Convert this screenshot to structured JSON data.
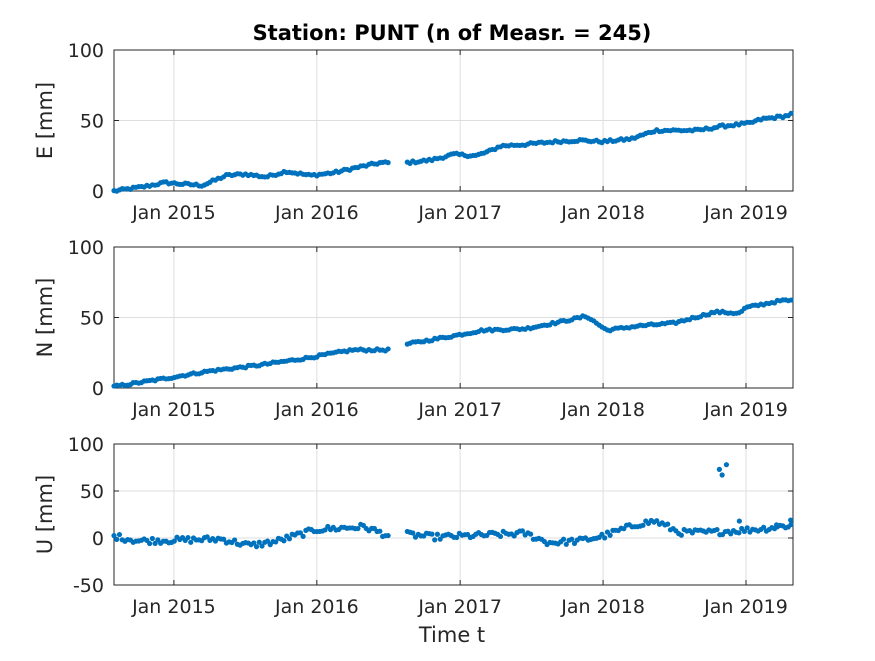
{
  "title": "Station: PUNT (n of Measr. = 245)",
  "xlabel": "Time t",
  "colors": {
    "marker": "#0072BD",
    "grid": "#dedede",
    "axis": "#262626",
    "text": "#262626"
  },
  "chart_data": [
    {
      "type": "scatter",
      "name_key": "E",
      "ylabel": "E [mm]",
      "xlim": [
        "2014-08-01",
        "2019-05-01"
      ],
      "ylim": [
        0,
        100
      ],
      "yticks": [
        0,
        50,
        100
      ],
      "xticks": [
        "Jan 2015",
        "Jan 2016",
        "Jan 2017",
        "Jan 2018",
        "Jan 2019"
      ],
      "grid": true,
      "gap": [
        "2016-07-07",
        "2016-08-14"
      ],
      "trend_points": [
        [
          "2014-08-01",
          0
        ],
        [
          "2014-10-15",
          3
        ],
        [
          "2014-12-10",
          6
        ],
        [
          "2015-01-20",
          5
        ],
        [
          "2015-03-15",
          4
        ],
        [
          "2015-05-15",
          11
        ],
        [
          "2015-07-01",
          12
        ],
        [
          "2015-08-25",
          10
        ],
        [
          "2015-10-15",
          14
        ],
        [
          "2015-12-15",
          11
        ],
        [
          "2016-02-15",
          13
        ],
        [
          "2016-04-01",
          16
        ],
        [
          "2016-06-10",
          20
        ],
        [
          "2016-08-15",
          20
        ],
        [
          "2016-10-20",
          22
        ],
        [
          "2016-12-15",
          26
        ],
        [
          "2017-02-10",
          25
        ],
        [
          "2017-03-15",
          28
        ],
        [
          "2017-04-15",
          32
        ],
        [
          "2017-06-15",
          33
        ],
        [
          "2017-09-01",
          35
        ],
        [
          "2017-11-01",
          36
        ],
        [
          "2018-01-01",
          35
        ],
        [
          "2018-03-15",
          37
        ],
        [
          "2018-04-15",
          40
        ],
        [
          "2018-05-15",
          43
        ],
        [
          "2018-09-01",
          43
        ],
        [
          "2018-11-01",
          46
        ],
        [
          "2019-01-10",
          48
        ],
        [
          "2019-02-10",
          51
        ],
        [
          "2019-04-10",
          53
        ],
        [
          "2019-05-01",
          55
        ]
      ],
      "noise": 0.9
    },
    {
      "type": "scatter",
      "name_key": "N",
      "ylabel": "N [mm]",
      "xlim": [
        "2014-08-01",
        "2019-05-01"
      ],
      "ylim": [
        0,
        100
      ],
      "yticks": [
        0,
        50,
        100
      ],
      "xticks": [
        "Jan 2015",
        "Jan 2016",
        "Jan 2017",
        "Jan 2018",
        "Jan 2019"
      ],
      "grid": true,
      "gap": [
        "2016-07-07",
        "2016-08-14"
      ],
      "trend_points": [
        [
          "2014-08-01",
          1
        ],
        [
          "2014-12-15",
          7
        ],
        [
          "2015-04-01",
          12
        ],
        [
          "2015-08-01",
          16
        ],
        [
          "2015-12-01",
          21
        ],
        [
          "2016-04-01",
          27
        ],
        [
          "2016-07-05",
          27
        ],
        [
          "2016-08-15",
          31
        ],
        [
          "2016-12-15",
          37
        ],
        [
          "2017-03-01",
          41
        ],
        [
          "2017-06-15",
          42
        ],
        [
          "2017-09-15",
          47
        ],
        [
          "2017-11-20",
          51
        ],
        [
          "2017-12-15",
          46
        ],
        [
          "2018-01-10",
          41
        ],
        [
          "2018-04-01",
          44
        ],
        [
          "2018-07-01",
          46
        ],
        [
          "2018-10-15",
          54
        ],
        [
          "2018-12-15",
          53
        ],
        [
          "2019-01-01",
          57
        ],
        [
          "2019-04-01",
          62
        ],
        [
          "2019-05-01",
          62
        ]
      ],
      "noise": 0.8
    },
    {
      "type": "scatter",
      "name_key": "U",
      "ylabel": "U [mm]",
      "xlim": [
        "2014-08-01",
        "2019-05-01"
      ],
      "ylim": [
        -50,
        100
      ],
      "yticks": [
        -50,
        0,
        50,
        100
      ],
      "xticks": [
        "Jan 2015",
        "Jan 2016",
        "Jan 2017",
        "Jan 2018",
        "Jan 2019"
      ],
      "grid": true,
      "gap": [
        "2016-07-07",
        "2016-08-14"
      ],
      "trend_points": [
        [
          "2014-08-01",
          2
        ],
        [
          "2014-10-01",
          -3
        ],
        [
          "2015-02-01",
          -2
        ],
        [
          "2015-05-01",
          -1
        ],
        [
          "2015-07-15",
          -8
        ],
        [
          "2015-09-15",
          -4
        ],
        [
          "2016-01-01",
          9
        ],
        [
          "2016-05-01",
          12
        ],
        [
          "2016-07-05",
          2
        ],
        [
          "2016-08-15",
          4
        ],
        [
          "2016-11-01",
          1
        ],
        [
          "2017-03-01",
          3
        ],
        [
          "2017-06-15",
          5
        ],
        [
          "2017-08-15",
          -5
        ],
        [
          "2017-11-01",
          -3
        ],
        [
          "2018-01-01",
          2
        ],
        [
          "2018-04-01",
          15
        ],
        [
          "2018-05-15",
          18
        ],
        [
          "2018-07-15",
          6
        ],
        [
          "2018-10-01",
          6
        ],
        [
          "2018-12-15",
          8
        ],
        [
          "2019-02-15",
          10
        ],
        [
          "2019-05-01",
          14
        ]
      ],
      "noise": 3.2,
      "outliers": [
        [
          "2018-10-25",
          73
        ],
        [
          "2018-11-01",
          67
        ],
        [
          "2018-11-12",
          78
        ],
        [
          "2018-12-15",
          18
        ],
        [
          "2019-03-20",
          14
        ],
        [
          "2019-04-25",
          19
        ]
      ]
    }
  ]
}
